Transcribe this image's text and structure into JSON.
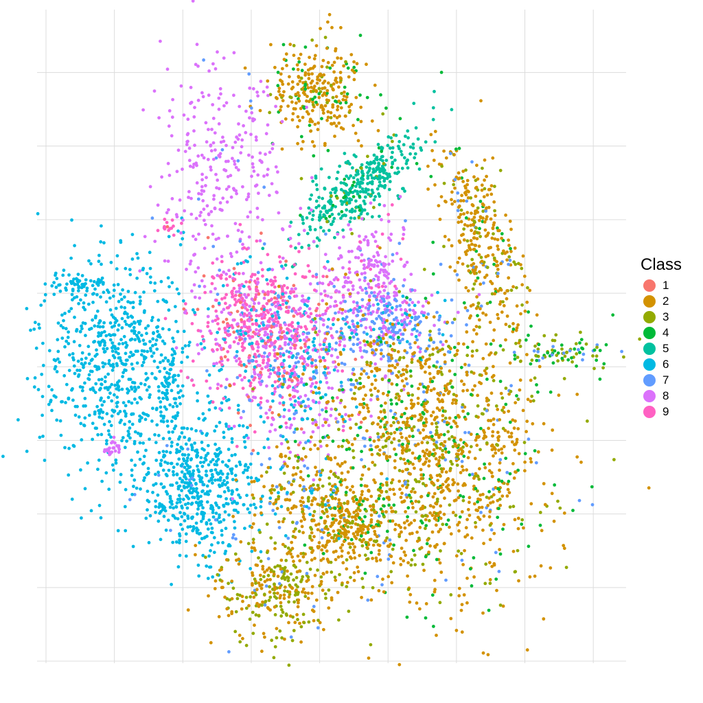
{
  "chart_data": {
    "type": "scatter",
    "title": "",
    "xlabel": "",
    "ylabel": "",
    "grid": true,
    "tick_labels_visible": false,
    "xlim": [
      0,
      8.5
    ],
    "ylim": [
      0,
      8.5
    ],
    "x_major_ticks": [
      0,
      1,
      2,
      3,
      4,
      5,
      6,
      7,
      8
    ],
    "y_major_ticks": [
      0,
      1,
      2,
      3,
      4,
      5,
      6,
      7,
      8
    ],
    "legend": {
      "title": "Class",
      "placement": "right",
      "entries": [
        {
          "label": "1",
          "color": "#F8766D"
        },
        {
          "label": "2",
          "color": "#D39200"
        },
        {
          "label": "3",
          "color": "#93AA00"
        },
        {
          "label": "4",
          "color": "#00BA38"
        },
        {
          "label": "5",
          "color": "#00C19F"
        },
        {
          "label": "6",
          "color": "#00B9E3"
        },
        {
          "label": "7",
          "color": "#619CFF"
        },
        {
          "label": "8",
          "color": "#DB72FB"
        },
        {
          "label": "9",
          "color": "#FF61C3"
        }
      ]
    },
    "clusters": [
      {
        "cx": 4.0,
        "cy": 7.8,
        "sx": 0.35,
        "sy": 0.35,
        "n": 300,
        "mix": {
          "2": 0.75,
          "3": 0.1,
          "4": 0.15
        }
      },
      {
        "cx": 4.55,
        "cy": 6.45,
        "sx": 0.55,
        "sy": 0.18,
        "rot": 40,
        "n": 380,
        "mix": {
          "5": 0.88,
          "3": 0.06,
          "4": 0.06
        }
      },
      {
        "cx": 6.35,
        "cy": 5.85,
        "sx": 0.25,
        "sy": 0.7,
        "rot": 20,
        "n": 330,
        "mix": {
          "2": 0.68,
          "3": 0.16,
          "4": 0.1,
          "7": 0.06
        }
      },
      {
        "cx": 1.0,
        "cy": 4.1,
        "sx": 0.55,
        "sy": 0.7,
        "n": 650,
        "mix": {
          "6": 1.0
        }
      },
      {
        "cx": 0.55,
        "cy": 5.15,
        "sx": 0.25,
        "sy": 0.08,
        "n": 60,
        "mix": {
          "6": 1.0
        }
      },
      {
        "cx": 2.2,
        "cy": 2.4,
        "sx": 0.45,
        "sy": 0.5,
        "n": 560,
        "mix": {
          "6": 0.97,
          "7": 0.03
        }
      },
      {
        "cx": 1.8,
        "cy": 3.6,
        "sx": 0.1,
        "sy": 0.3,
        "n": 50,
        "mix": {
          "6": 1.0
        }
      },
      {
        "cx": 2.55,
        "cy": 6.6,
        "sx": 0.45,
        "sy": 0.8,
        "n": 300,
        "mix": {
          "8": 0.95,
          "7": 0.05
        }
      },
      {
        "cx": 3.15,
        "cy": 4.65,
        "sx": 0.45,
        "sy": 0.45,
        "n": 620,
        "mix": {
          "9": 0.55,
          "8": 0.2,
          "1": 0.12,
          "6": 0.08,
          "7": 0.05
        }
      },
      {
        "cx": 3.7,
        "cy": 4.0,
        "sx": 0.55,
        "sy": 0.6,
        "n": 520,
        "mix": {
          "8": 0.4,
          "9": 0.15,
          "6": 0.25,
          "7": 0.15,
          "1": 0.05
        }
      },
      {
        "cx": 4.75,
        "cy": 5.25,
        "sx": 0.35,
        "sy": 0.45,
        "n": 260,
        "mix": {
          "8": 0.8,
          "7": 0.1,
          "9": 0.1
        }
      },
      {
        "cx": 5.1,
        "cy": 4.55,
        "sx": 0.45,
        "sy": 0.25,
        "n": 230,
        "mix": {
          "7": 0.6,
          "8": 0.2,
          "6": 0.2
        }
      },
      {
        "cx": 5.6,
        "cy": 2.9,
        "sx": 0.85,
        "sy": 0.95,
        "n": 1450,
        "mix": {
          "2": 0.62,
          "3": 0.18,
          "4": 0.14,
          "7": 0.06
        }
      },
      {
        "cx": 4.4,
        "cy": 1.85,
        "sx": 0.3,
        "sy": 0.3,
        "n": 260,
        "mix": {
          "2": 0.7,
          "3": 0.2,
          "4": 0.1
        }
      },
      {
        "cx": 3.7,
        "cy": 2.25,
        "sx": 0.3,
        "sy": 0.35,
        "n": 160,
        "mix": {
          "2": 0.5,
          "3": 0.2,
          "7": 0.2,
          "6": 0.1
        }
      },
      {
        "cx": 3.4,
        "cy": 1.0,
        "sx": 0.45,
        "sy": 0.35,
        "n": 320,
        "mix": {
          "2": 0.5,
          "3": 0.45,
          "7": 0.05
        }
      },
      {
        "cx": 7.55,
        "cy": 4.2,
        "sx": 0.35,
        "sy": 0.12,
        "n": 80,
        "mix": {
          "3": 0.5,
          "4": 0.3,
          "7": 0.2
        }
      },
      {
        "cx": 0.95,
        "cy": 2.9,
        "sx": 0.07,
        "sy": 0.06,
        "n": 25,
        "mix": {
          "8": 1.0
        }
      },
      {
        "cx": 1.75,
        "cy": 5.95,
        "sx": 0.06,
        "sy": 0.06,
        "n": 15,
        "mix": {
          "9": 0.8,
          "1": 0.2
        }
      }
    ]
  }
}
